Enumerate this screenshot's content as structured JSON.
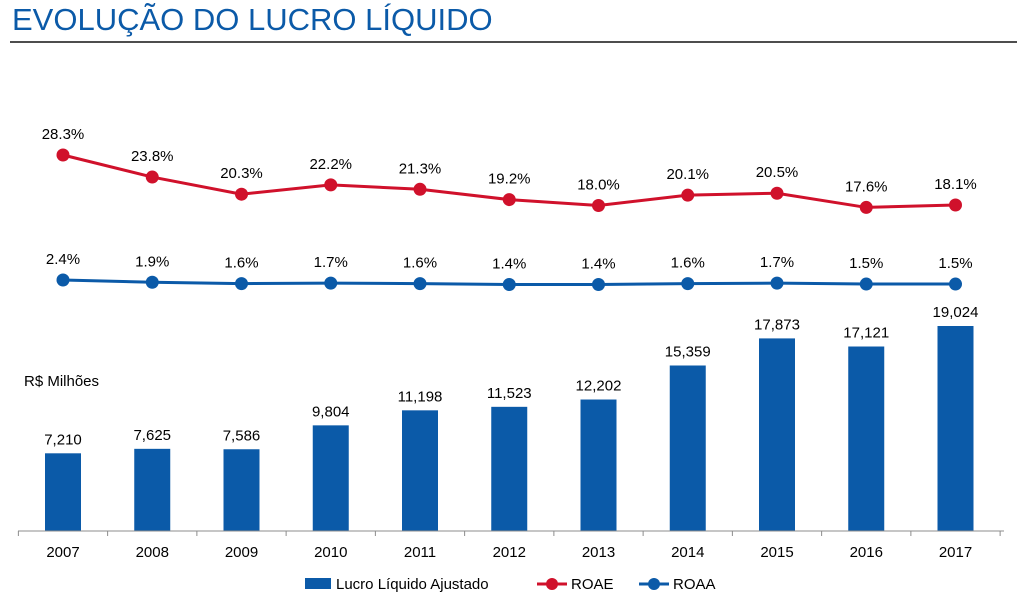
{
  "header": {
    "title": "EVOLUÇÃO DO LUCRO LÍQUIDO"
  },
  "chart_data": {
    "type": "bar",
    "title": "EVOLUÇÃO DO LUCRO LÍQUIDO",
    "unit_label": "R$ Milhões",
    "categories": [
      "2007",
      "2008",
      "2009",
      "2010",
      "2011",
      "2012",
      "2013",
      "2014",
      "2015",
      "2016",
      "2017"
    ],
    "series": [
      {
        "name": "Lucro Líquido Ajustado",
        "type": "bar",
        "color": "#0b5aa8",
        "values": [
          7210,
          7625,
          7586,
          9804,
          11198,
          11523,
          12202,
          15359,
          17873,
          17121,
          19024
        ],
        "labels": [
          "7,210",
          "7,625",
          "7,586",
          "9,804",
          "11,198",
          "11,523",
          "12,202",
          "15,359",
          "17,873",
          "17,121",
          "19,024"
        ]
      },
      {
        "name": "ROAE",
        "type": "line",
        "color": "#d0112b",
        "values": [
          28.3,
          23.8,
          20.3,
          22.2,
          21.3,
          19.2,
          18.0,
          20.1,
          20.5,
          17.6,
          18.1
        ],
        "labels": [
          "28.3%",
          "23.8%",
          "20.3%",
          "22.2%",
          "21.3%",
          "19.2%",
          "18.0%",
          "20.1%",
          "20.5%",
          "17.6%",
          "18.1%"
        ]
      },
      {
        "name": "ROAA",
        "type": "line",
        "color": "#0b5aa8",
        "values": [
          2.4,
          1.9,
          1.6,
          1.7,
          1.6,
          1.4,
          1.4,
          1.6,
          1.7,
          1.5,
          1.5
        ],
        "labels": [
          "2.4%",
          "1.9%",
          "1.6%",
          "1.7%",
          "1.6%",
          "1.4%",
          "1.4%",
          "1.6%",
          "1.7%",
          "1.5%",
          "1.5%"
        ]
      }
    ],
    "ylim": [
      0,
      19024
    ],
    "grid": false,
    "legend_position": "bottom"
  }
}
